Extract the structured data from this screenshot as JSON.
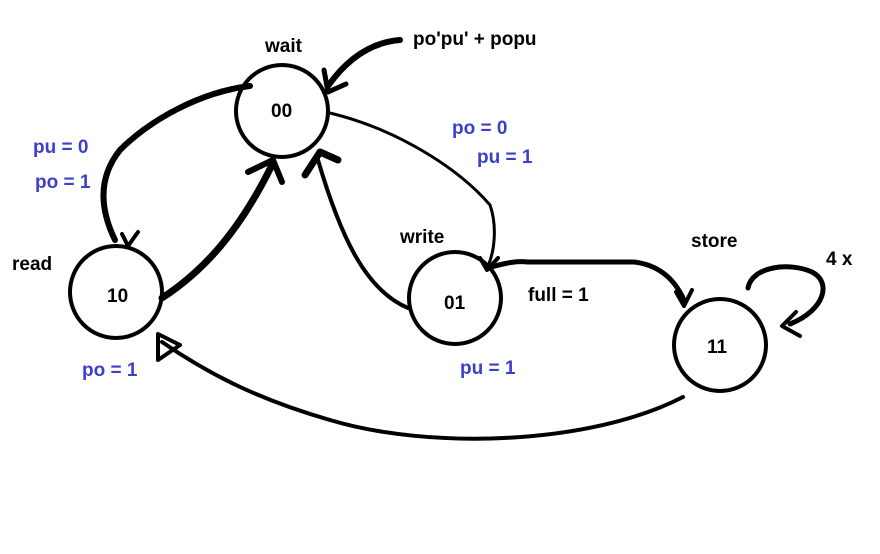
{
  "colors": {
    "ink": "#000000",
    "condition": "#3b3fcc",
    "background": "#ffffff"
  },
  "states": {
    "wait": {
      "name": "wait",
      "code": "00"
    },
    "read": {
      "name": "read",
      "code": "10"
    },
    "write": {
      "name": "write",
      "code": "01"
    },
    "store": {
      "name": "store",
      "code": "11"
    }
  },
  "transitions": {
    "entry_condition": "po'pu' + popu",
    "wait_to_read": {
      "line1": "pu = 0",
      "line2": "po = 1"
    },
    "wait_to_write": {
      "line1": "po = 0",
      "line2": "pu = 1"
    },
    "read_to_wait": "po = 1",
    "write_to_wait": "pu = 1",
    "write_to_store": "full = 1",
    "store_self_loop": "4 x"
  }
}
